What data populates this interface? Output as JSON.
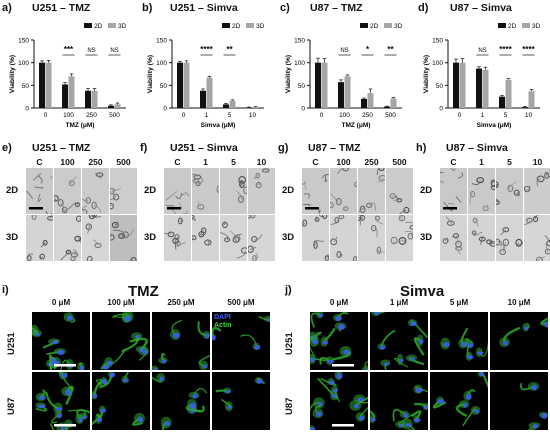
{
  "charts": [
    {
      "letter": "a)",
      "title": "U251 – TMZ"
    },
    {
      "letter": "b)",
      "title": "U251 –  Simva"
    },
    {
      "letter": "c)",
      "title": "U87 – TMZ"
    },
    {
      "letter": "d)",
      "title": "U87 –  Simva"
    }
  ],
  "chart_data": [
    {
      "type": "bar",
      "title": "U251 – TMZ",
      "xlabel": "TMZ (μM)",
      "ylabel": "Viability (%)",
      "ylim": [
        0,
        150
      ],
      "yticks": [
        "0",
        "50",
        "100",
        "150"
      ],
      "categories": [
        "0",
        "100",
        "250",
        "500"
      ],
      "series": [
        {
          "name": "2D",
          "values": [
            100,
            52,
            38,
            5
          ],
          "errors": [
            4,
            4,
            5,
            2
          ]
        },
        {
          "name": "3D",
          "values": [
            100,
            70,
            38,
            8
          ],
          "errors": [
            5,
            5,
            5,
            3
          ]
        }
      ],
      "significance": [
        "",
        "***",
        "NS",
        "NS"
      ],
      "colors": {
        "2D": "#111111",
        "3D": "#a6a6a6"
      }
    },
    {
      "type": "bar",
      "title": "U251 –  Simva",
      "xlabel": "Simva (μM)",
      "ylabel": "Viability (%)",
      "ylim": [
        0,
        150
      ],
      "yticks": [
        "0",
        "50",
        "100",
        "150"
      ],
      "categories": [
        "0",
        "1",
        "5",
        "10"
      ],
      "series": [
        {
          "name": "2D",
          "values": [
            100,
            38,
            8,
            1
          ],
          "errors": [
            3,
            4,
            2,
            1
          ]
        },
        {
          "name": "3D",
          "values": [
            100,
            67,
            16,
            2
          ],
          "errors": [
            4,
            3,
            2,
            1
          ]
        }
      ],
      "significance": [
        "",
        "****",
        "**",
        ""
      ],
      "colors": {
        "2D": "#111111",
        "3D": "#a6a6a6"
      }
    },
    {
      "type": "bar",
      "title": "U87 – TMZ",
      "xlabel": "TMZ (μM)",
      "ylabel": "Viability (%)",
      "ylim": [
        0,
        150
      ],
      "yticks": [
        "0",
        "50",
        "100",
        "150"
      ],
      "categories": [
        "0",
        "100",
        "250",
        "500"
      ],
      "series": [
        {
          "name": "2D",
          "values": [
            100,
            57,
            20,
            3
          ],
          "errors": [
            10,
            5,
            2,
            1
          ]
        },
        {
          "name": "3D",
          "values": [
            100,
            70,
            33,
            21
          ],
          "errors": [
            9,
            3,
            9,
            2
          ]
        }
      ],
      "significance": [
        "",
        "NS",
        "*",
        "**"
      ],
      "colors": {
        "2D": "#111111",
        "3D": "#a6a6a6"
      }
    },
    {
      "type": "bar",
      "title": "U87 –  Simva",
      "xlabel": "Simva (μM)",
      "ylabel": "Viability (%)",
      "ylim": [
        0,
        150
      ],
      "yticks": [
        "0",
        "50",
        "100",
        "150"
      ],
      "categories": [
        "0",
        "1",
        "5",
        "10"
      ],
      "series": [
        {
          "name": "2D",
          "values": [
            100,
            87,
            25,
            2
          ],
          "errors": [
            8,
            4,
            3,
            1
          ]
        },
        {
          "name": "3D",
          "values": [
            100,
            84,
            62,
            37
          ],
          "errors": [
            9,
            6,
            3,
            4
          ]
        }
      ],
      "significance": [
        "",
        "NS",
        "****",
        "****"
      ],
      "colors": {
        "2D": "#111111",
        "3D": "#a6a6a6"
      }
    }
  ],
  "micro_panels": [
    {
      "letter": "e)",
      "title": "U251 – TMZ",
      "cols": [
        "C",
        "100",
        "250",
        "500"
      ],
      "rows": [
        "2D",
        "3D"
      ]
    },
    {
      "letter": "f)",
      "title": "U251 –  Simva",
      "cols": [
        "C",
        "1",
        "5",
        "10"
      ],
      "rows": [
        "2D",
        "3D"
      ]
    },
    {
      "letter": "g)",
      "title": "U87 – TMZ",
      "cols": [
        "C",
        "100",
        "250",
        "500"
      ],
      "rows": [
        "2D",
        "3D"
      ]
    },
    {
      "letter": "h)",
      "title": "U87 –  Simva",
      "cols": [
        "C",
        "1",
        "5",
        "10"
      ],
      "rows": [
        "2D",
        "3D"
      ]
    }
  ],
  "fluor": [
    {
      "letter": "i)",
      "title": "TMZ",
      "cols": [
        "0 μM",
        "100 μM",
        "250 μM",
        "500 μM"
      ],
      "rows": [
        "U251",
        "U87"
      ],
      "legend": {
        "dapi": "DAPI",
        "actin": "Actin",
        "dapi_color": "#3c5cff",
        "actin_color": "#39d339"
      }
    },
    {
      "letter": "j)",
      "title": "Simva",
      "cols": [
        "0 μM",
        "1 μM",
        "5 μM",
        "10 μM"
      ],
      "rows": [
        "U251",
        "U87"
      ]
    }
  ]
}
